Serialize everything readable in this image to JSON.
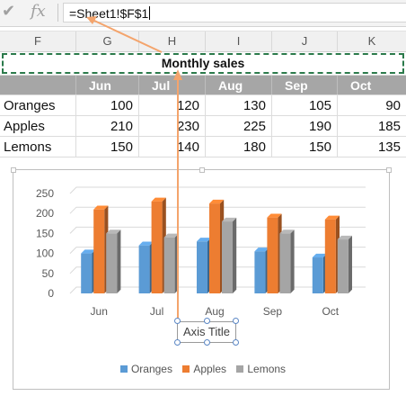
{
  "formula_bar": {
    "formula": "=Sheet1!$F$1",
    "check_glyph": "✔",
    "fx_glyph": "fx"
  },
  "columns": [
    "F",
    "G",
    "H",
    "I",
    "J",
    "K"
  ],
  "sheet": {
    "title": "Monthly sales",
    "months": [
      "Jun",
      "Jul",
      "Aug",
      "Sep",
      "Oct"
    ],
    "rows": [
      {
        "label": "Oranges",
        "values": [
          100,
          120,
          130,
          105,
          90
        ]
      },
      {
        "label": "Apples",
        "values": [
          210,
          230,
          225,
          190,
          185
        ]
      },
      {
        "label": "Lemons",
        "values": [
          150,
          140,
          180,
          150,
          135
        ]
      }
    ]
  },
  "chart_data": {
    "type": "bar",
    "categories": [
      "Jun",
      "Jul",
      "Aug",
      "Sep",
      "Oct"
    ],
    "series": [
      {
        "name": "Oranges",
        "values": [
          100,
          120,
          130,
          105,
          90
        ],
        "color": "#5b9bd5"
      },
      {
        "name": "Apples",
        "values": [
          210,
          230,
          225,
          190,
          185
        ],
        "color": "#ed7d31"
      },
      {
        "name": "Lemons",
        "values": [
          150,
          140,
          180,
          150,
          135
        ],
        "color": "#a5a5a5"
      }
    ],
    "ylim": [
      0,
      250
    ],
    "yticks": [
      0,
      50,
      100,
      150,
      200,
      250
    ],
    "xlabel": "Axis Title",
    "legend": "bottom",
    "style": "3-D clustered column"
  },
  "colors": {
    "arrow": "#f4a46c",
    "selection": "#2b7a4b",
    "header_fill": "#a6a6a6"
  }
}
